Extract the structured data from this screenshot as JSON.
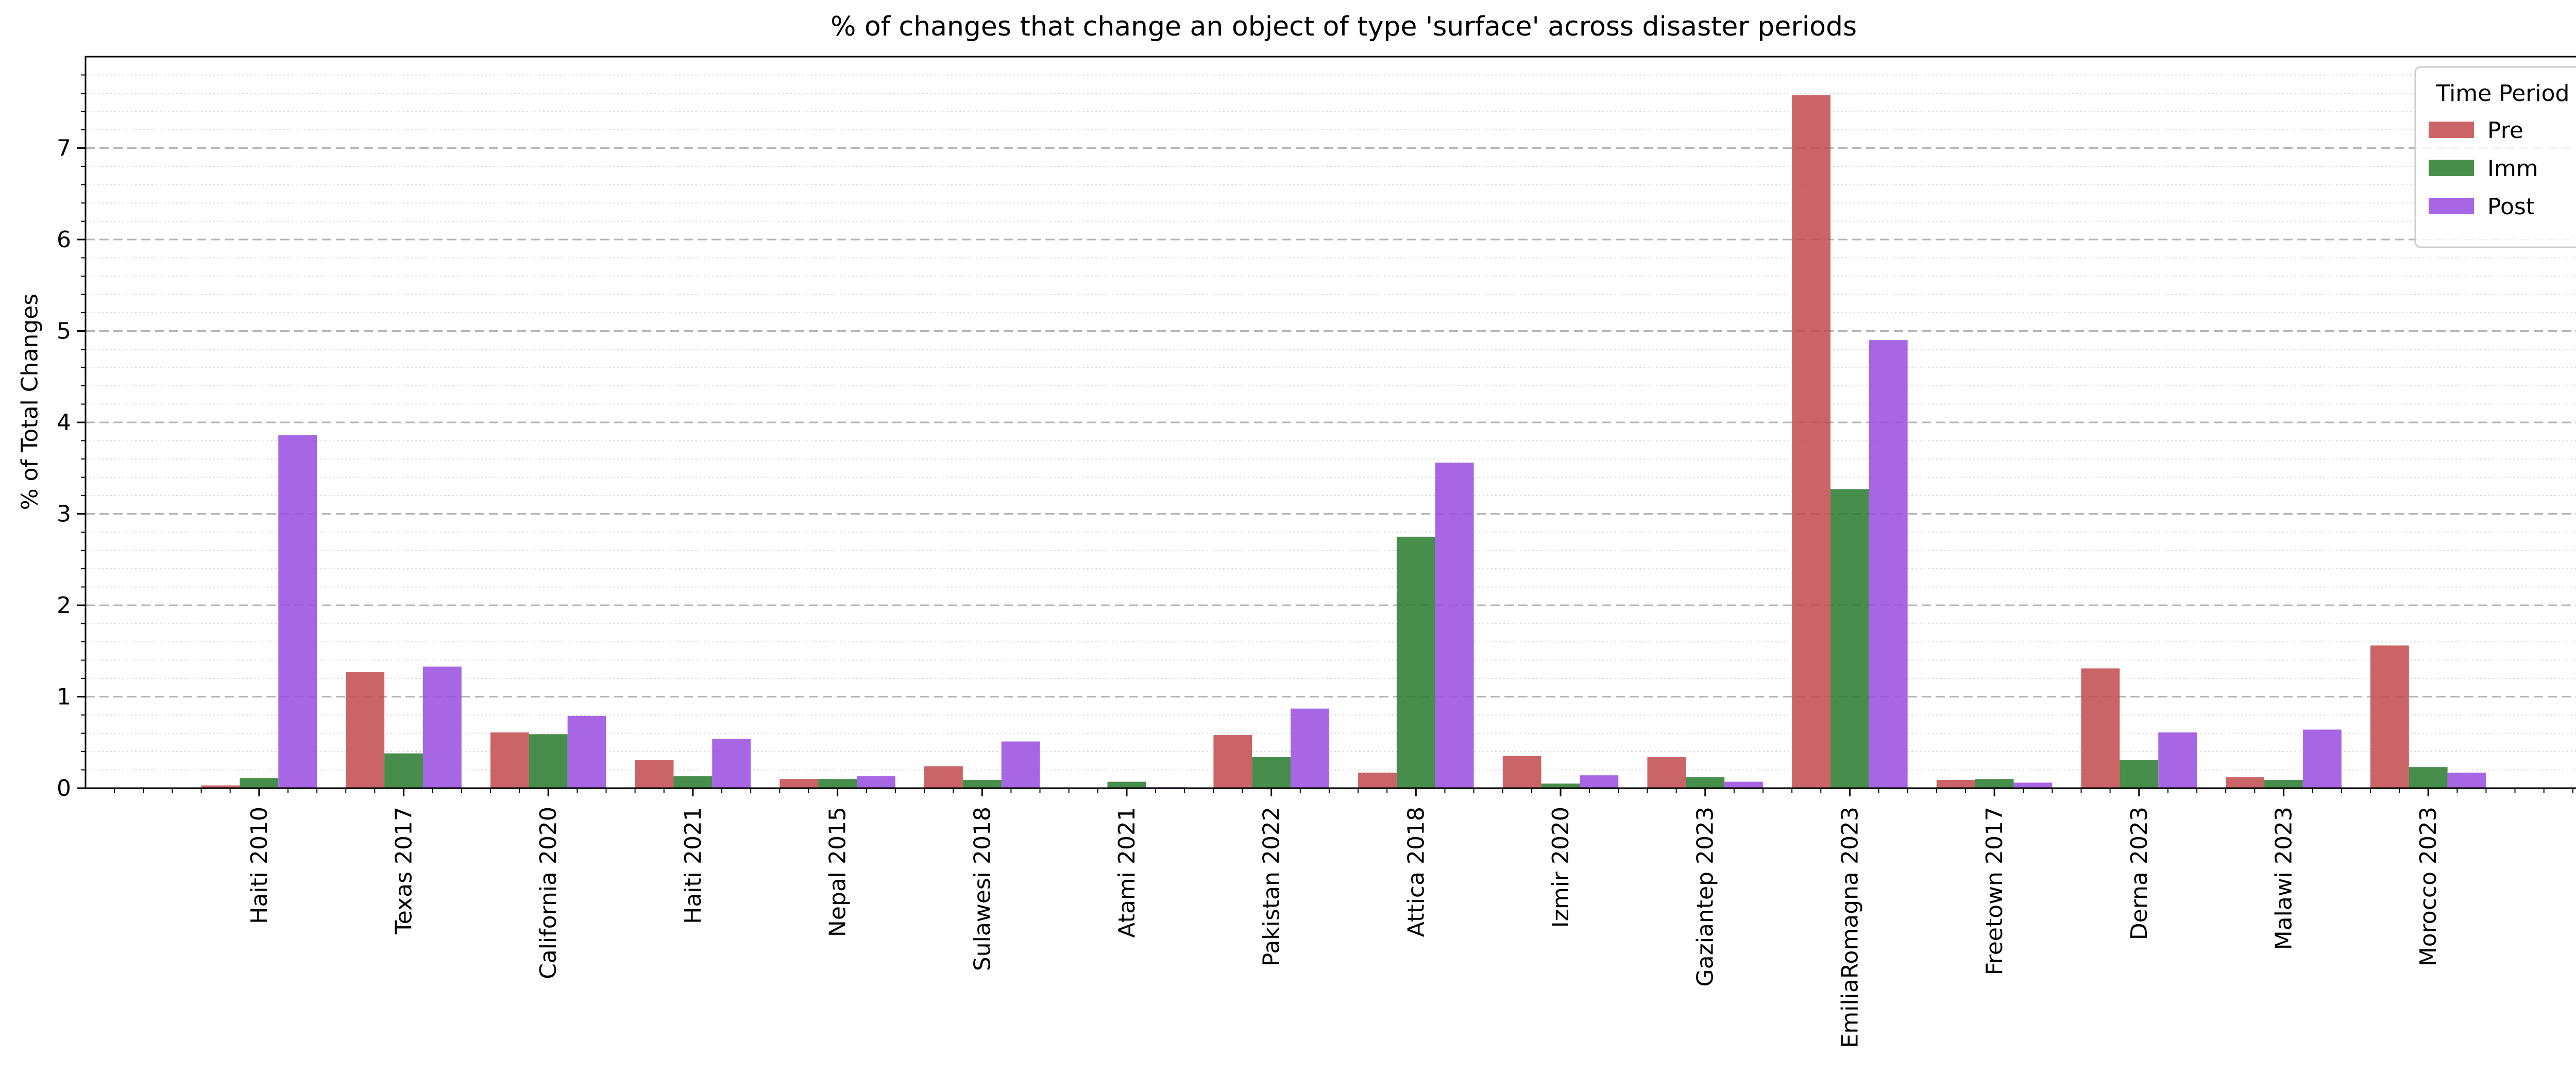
{
  "chart_data": {
    "type": "bar",
    "title": "% of changes that change an object of type 'surface' across disaster periods",
    "xlabel": "",
    "ylabel": "% of Total Changes",
    "ylim": [
      0,
      8.0
    ],
    "yticks": [
      0,
      1,
      2,
      3,
      4,
      5,
      6,
      7
    ],
    "grid": "horizontal, dashed major and dotted minor",
    "legend": {
      "title": "Time Period",
      "placement": "top-right"
    },
    "categories": [
      "Haiti 2010",
      "Texas 2017",
      "California 2020",
      "Haiti 2021",
      "Nepal 2015",
      "Sulawesi 2018",
      "Atami 2021",
      "Pakistan 2022",
      "Attica 2018",
      "Izmir 2020",
      "Gaziantep 2023",
      "EmiliaRomagna 2023",
      "Freetown 2017",
      "Derna 2023",
      "Malawi 2023",
      "Morocco 2023"
    ],
    "series": [
      {
        "name": "Pre",
        "color": "#c44e52",
        "values": [
          0.03,
          1.27,
          0.61,
          0.31,
          0.1,
          0.24,
          0.0,
          0.58,
          0.17,
          0.35,
          0.34,
          7.58,
          0.09,
          1.31,
          0.12,
          1.56
        ]
      },
      {
        "name": "Imm",
        "color": "#2e7d32",
        "values": [
          0.11,
          0.38,
          0.59,
          0.13,
          0.1,
          0.09,
          0.07,
          0.34,
          2.75,
          0.05,
          0.12,
          3.27,
          0.1,
          0.31,
          0.09,
          0.23
        ]
      },
      {
        "name": "Post",
        "color": "#9b51e0",
        "values": [
          3.86,
          1.33,
          0.79,
          0.54,
          0.13,
          0.51,
          0.01,
          0.87,
          3.56,
          0.14,
          0.07,
          4.9,
          0.06,
          0.61,
          0.64,
          0.17
        ]
      }
    ]
  }
}
